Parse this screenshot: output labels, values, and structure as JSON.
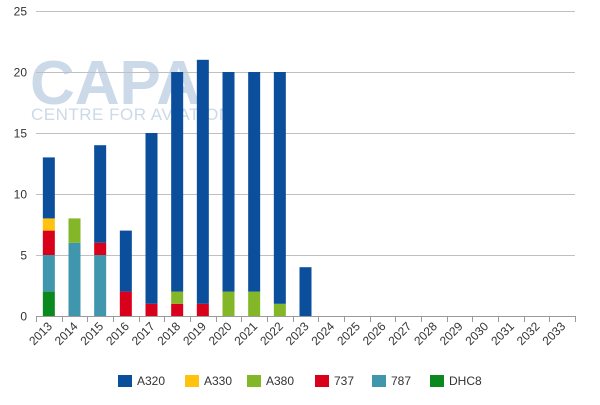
{
  "watermark": {
    "logo": "CAPA",
    "tagline": "CENTRE FOR AVIATION"
  },
  "chart_data": {
    "type": "bar",
    "stacked": true,
    "categories": [
      "2013",
      "2014",
      "2015",
      "2016",
      "2017",
      "2018",
      "2019",
      "2020",
      "2021",
      "2022",
      "2023",
      "2024",
      "2025",
      "2026",
      "2027",
      "2028",
      "2029",
      "2030",
      "2031",
      "2032",
      "2033"
    ],
    "ylim": [
      0,
      25
    ],
    "yticks": [
      0,
      5,
      10,
      15,
      20,
      25
    ],
    "legend_position": "bottom",
    "series": [
      {
        "name": "DHC8",
        "color": "#0a8a1e",
        "values": [
          2,
          0,
          0,
          0,
          0,
          0,
          0,
          0,
          0,
          0,
          0,
          0,
          0,
          0,
          0,
          0,
          0,
          0,
          0,
          0,
          0
        ]
      },
      {
        "name": "787",
        "color": "#3f96ad",
        "values": [
          3,
          6,
          5,
          0,
          0,
          0,
          0,
          0,
          0,
          0,
          0,
          0,
          0,
          0,
          0,
          0,
          0,
          0,
          0,
          0,
          0
        ]
      },
      {
        "name": "737",
        "color": "#d9001b",
        "values": [
          2,
          0,
          1,
          2,
          1,
          1,
          1,
          0,
          0,
          0,
          0,
          0,
          0,
          0,
          0,
          0,
          0,
          0,
          0,
          0,
          0
        ]
      },
      {
        "name": "A380",
        "color": "#84b728",
        "values": [
          0,
          2,
          0,
          0,
          0,
          1,
          0,
          2,
          2,
          1,
          0,
          0,
          0,
          0,
          0,
          0,
          0,
          0,
          0,
          0,
          0
        ]
      },
      {
        "name": "A330",
        "color": "#ffc20e",
        "values": [
          1,
          0,
          0,
          0,
          0,
          0,
          0,
          0,
          0,
          0,
          0,
          0,
          0,
          0,
          0,
          0,
          0,
          0,
          0,
          0,
          0
        ]
      },
      {
        "name": "A320",
        "color": "#0b4f9c",
        "values": [
          5,
          0,
          8,
          5,
          14,
          18,
          20,
          18,
          18,
          19,
          4,
          0,
          0,
          0,
          0,
          0,
          0,
          0,
          0,
          0,
          0
        ]
      }
    ],
    "legend_order": [
      "A320",
      "A330",
      "A380",
      "737",
      "787",
      "DHC8"
    ]
  }
}
